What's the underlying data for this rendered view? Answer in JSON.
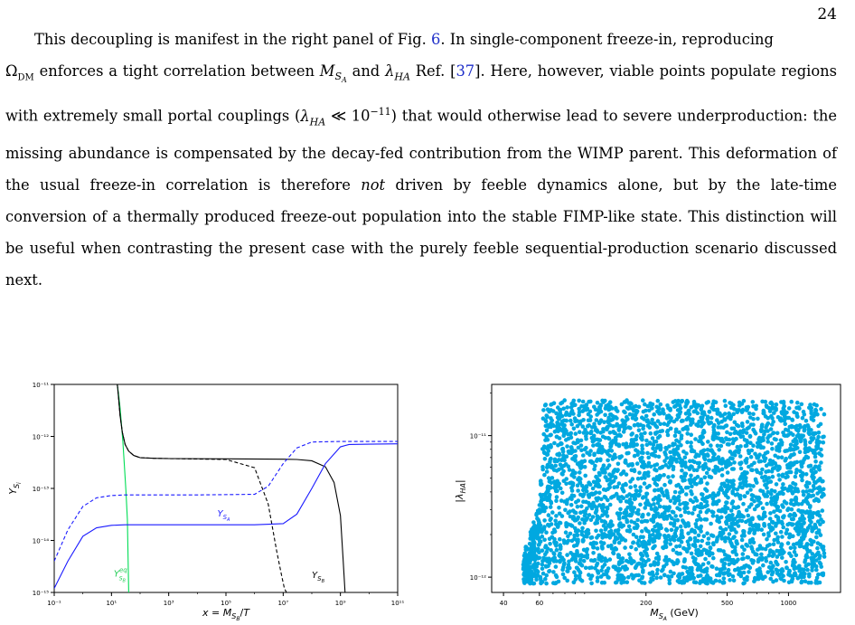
{
  "page": {
    "number": "24"
  },
  "paragraph": {
    "s1a": "This decoupling is manifest in the right panel of Fig.",
    "fig_ref": "6",
    "s1b": ". In single-component freeze-in, reproducing",
    "omega": "Ω",
    "omega_sub": "DM",
    "s2a": " enforces a tight correlation between ",
    "msa": "M",
    "msa_sub": "S",
    "msa_subsub": "A",
    "s2b": " and ",
    "lam": "λ",
    "lam_sub": "HA",
    "s2c": " Ref. [",
    "cite": "37",
    "s2d": "]. Here, however, viable points populate regions with extremely small portal couplings (",
    "lam2": "λ",
    "lam2_sub": "HA",
    "ll": " ≪ 10",
    "exp": "−11",
    "s3": ") that would otherwise lead to severe underproduction: the missing abundance is compensated by the decay-fed contribution from the WIMP parent. This deformation of the usual freeze-in correlation is therefore ",
    "emph": "not",
    "s4": " driven by feeble dynamics alone, but by the late-time conversion of a thermally produced freeze-out population into the stable FIMP-like state. This distinction will be useful when contrasting the present case with the purely feeble sequential-production scenario discussed next."
  },
  "chart_data": [
    {
      "type": "line",
      "xscale": "log",
      "yscale": "log",
      "xlim": [
        0.1,
        100000000000.0
      ],
      "ylim": [
        1e-15,
        1e-11
      ],
      "xlabel": "x = M_{S_B}/T",
      "ylabel": "Y_{S_i}",
      "xticks": [
        "10⁻¹",
        "10¹",
        "10³",
        "10⁵",
        "10⁷",
        "10⁹",
        "10¹¹"
      ],
      "yticks": [
        "10⁻¹⁵",
        "10⁻¹⁴",
        "10⁻¹³",
        "10⁻¹²",
        "10⁻¹¹"
      ],
      "annotations": [
        {
          "text": "Y_{S_A}",
          "color": "#1a1aff",
          "x": 50000.0,
          "y": 2.9e-14
        },
        {
          "text": "Y_{S_B}",
          "color": "#000000",
          "x": 100000000.0,
          "y": 1.9e-15
        },
        {
          "text": "Y^{eq}_{S_B}",
          "color": "#22cc55",
          "x": 12,
          "y": 2e-15
        }
      ],
      "series": [
        {
          "color": "#00dd55",
          "style": "solid",
          "x": [
            16,
            18,
            20,
            22,
            25,
            28,
            32,
            36,
            40
          ],
          "y": [
            1e-11,
            6e-12,
            3.5e-12,
            1.9e-12,
            8e-13,
            3e-13,
            9e-14,
            2.5e-14,
            1e-15
          ]
        },
        {
          "color": "#000000",
          "style": "solid",
          "x": [
            16,
            18,
            20,
            24,
            30,
            40,
            60,
            100,
            300,
            1000,
            100000.0,
            10000000.0,
            30000000.0,
            100000000.0,
            300000000.0,
            600000000.0,
            1000000000.0,
            1250000000.0,
            1450000000.0
          ],
          "y": [
            1e-11,
            5e-12,
            2.5e-12,
            1.2e-12,
            7e-13,
            5.2e-13,
            4.3e-13,
            3.9e-13,
            3.8e-13,
            3.75e-13,
            3.7e-13,
            3.65e-13,
            3.6e-13,
            3.4e-13,
            2.6e-13,
            1.3e-13,
            3e-14,
            4e-15,
            1e-15
          ]
        },
        {
          "color": "#000000",
          "style": "dashed",
          "x": [
            16,
            18,
            20,
            24,
            30,
            40,
            60,
            100,
            300,
            1000,
            100000.0,
            1000000.0,
            3000000.0,
            6000000.0,
            9000000.0,
            11000000.0,
            13000000.0
          ],
          "y": [
            1e-11,
            5e-12,
            2.5e-12,
            1.2e-12,
            7e-13,
            5.2e-13,
            4.3e-13,
            3.9e-13,
            3.8e-13,
            3.75e-13,
            3.6e-13,
            2.5e-13,
            5e-14,
            6e-15,
            2e-15,
            1.2e-15,
            1e-15
          ]
        },
        {
          "color": "#1a1aff",
          "style": "solid",
          "x": [
            0.1,
            0.3,
            1,
            3,
            10,
            30,
            100,
            10000.0,
            1000000.0,
            10000000.0,
            30000000.0,
            100000000.0,
            300000000.0,
            1000000000.0,
            2000000000.0,
            10000000000.0,
            100000000000.0
          ],
          "y": [
            1.2e-15,
            4e-15,
            1.2e-14,
            1.75e-14,
            1.95e-14,
            2e-14,
            2e-14,
            2e-14,
            2e-14,
            2.1e-14,
            3.2e-14,
            1e-13,
            3e-13,
            6.3e-13,
            7e-13,
            7.1e-13,
            7.2e-13
          ]
        },
        {
          "color": "#1a1aff",
          "style": "dashed",
          "x": [
            0.1,
            0.3,
            1,
            3,
            10,
            30,
            100,
            10000.0,
            1000000.0,
            3000000.0,
            10000000.0,
            30000000.0,
            100000000.0,
            1000000000.0,
            10000000000.0,
            100000000000.0
          ],
          "y": [
            4e-15,
            1.6e-14,
            4.5e-14,
            6.6e-14,
            7.3e-14,
            7.5e-14,
            7.5e-14,
            7.5e-14,
            7.7e-14,
            1.1e-13,
            3e-13,
            6e-13,
            7.8e-13,
            8e-13,
            8e-13,
            8e-13
          ]
        }
      ]
    },
    {
      "type": "scatter",
      "xscale": "log",
      "yscale": "log",
      "xlim": [
        35,
        1800
      ],
      "ylim": [
        7.8e-13,
        2.3e-11
      ],
      "xlabel": "M_{S_A} (GeV)",
      "ylabel": "|λ_{HA}|",
      "xticks": [
        "40",
        "60",
        "200",
        "500",
        "1000"
      ],
      "xtick_values": [
        40,
        60,
        200,
        500,
        1000
      ],
      "yticks": [
        "10⁻¹²",
        "10⁻¹¹"
      ],
      "ytick_values": [
        1e-12,
        1e-11
      ],
      "point_color": "#00a8e0",
      "point_count": 3500,
      "region": [
        {
          "x": 50,
          "y_range": [
            9e-13,
            1.5e-12
          ]
        },
        {
          "x": 60,
          "y_range": [
            9e-13,
            3.2e-12
          ]
        },
        {
          "x": 63,
          "y_range": [
            9e-13,
            1.8e-11
          ]
        },
        {
          "x": 1000,
          "y_range": [
            9e-13,
            1.75e-11
          ]
        },
        {
          "x": 1500,
          "y_range": [
            9e-13,
            1.7e-11
          ]
        }
      ]
    }
  ]
}
